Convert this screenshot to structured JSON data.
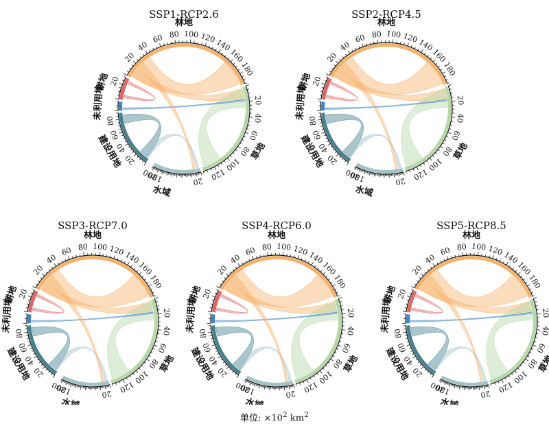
{
  "unit_note": {
    "prefix": "单位: ×10",
    "exp": "2",
    "suffix": " km",
    "exp2": "2"
  },
  "chart_data": [
    {
      "type": "chord",
      "title": "SSP1-RCP2.6",
      "sectors": [
        {
          "name": "林地",
          "value": 195,
          "ticks": [
            20,
            40,
            60,
            80,
            100,
            120,
            140,
            160,
            180
          ],
          "color": "#f6b26b"
        },
        {
          "name": "草地",
          "value": 135,
          "ticks": [
            20,
            40,
            60,
            80,
            100,
            120
          ],
          "color": "#b6d7a8"
        },
        {
          "name": "水域",
          "value": 205,
          "ticks": [
            20,
            180,
            200
          ],
          "color": "#a2c4c9"
        },
        {
          "name": "建设用地",
          "value": 90,
          "ticks": [
            20,
            40,
            60,
            80
          ],
          "color": "#45818e"
        },
        {
          "name": "未利用地",
          "value": 8,
          "ticks": [],
          "color": "#3d85c6"
        },
        {
          "name": "耕地",
          "value": 30,
          "ticks": [
            20
          ],
          "color": "#e06666"
        }
      ],
      "flows": [
        {
          "from": "林地",
          "to": "林地",
          "value": 150
        },
        {
          "from": "林地",
          "to": "草地",
          "value": 25
        },
        {
          "from": "草地",
          "to": "草地",
          "value": 100
        },
        {
          "from": "建设用地",
          "to": "建设用地",
          "value": 60
        },
        {
          "from": "耕地",
          "to": "耕地",
          "value": 15
        },
        {
          "from": "水域",
          "to": "建设用地",
          "value": 20
        },
        {
          "from": "未利用地",
          "to": "草地",
          "value": 3
        },
        {
          "from": "林地",
          "to": "水域",
          "value": 20
        }
      ]
    },
    {
      "type": "chord",
      "title": "SSP2-RCP4.5",
      "sectors": [
        {
          "name": "林地",
          "value": 195,
          "ticks": [
            20,
            40,
            60,
            80,
            100,
            120,
            140,
            160,
            180
          ],
          "color": "#f6b26b"
        },
        {
          "name": "草地",
          "value": 135,
          "ticks": [
            20,
            40,
            60,
            80,
            100,
            120
          ],
          "color": "#b6d7a8"
        },
        {
          "name": "水域",
          "value": 205,
          "ticks": [
            20,
            180,
            200
          ],
          "color": "#a2c4c9"
        },
        {
          "name": "建设用地",
          "value": 90,
          "ticks": [
            20,
            40,
            60,
            80
          ],
          "color": "#45818e"
        },
        {
          "name": "未利用地",
          "value": 8,
          "ticks": [],
          "color": "#3d85c6"
        },
        {
          "name": "耕地",
          "value": 30,
          "ticks": [
            20
          ],
          "color": "#e06666"
        }
      ],
      "flows": [
        {
          "from": "林地",
          "to": "林地",
          "value": 150
        },
        {
          "from": "林地",
          "to": "草地",
          "value": 25
        },
        {
          "from": "草地",
          "to": "草地",
          "value": 100
        },
        {
          "from": "建设用地",
          "to": "建设用地",
          "value": 60
        },
        {
          "from": "耕地",
          "to": "耕地",
          "value": 15
        },
        {
          "from": "水域",
          "to": "建设用地",
          "value": 20
        },
        {
          "from": "未利用地",
          "to": "草地",
          "value": 3
        },
        {
          "from": "林地",
          "to": "水域",
          "value": 20
        }
      ]
    },
    {
      "type": "chord",
      "title": "SSP3-RCP7.0",
      "sectors": [
        {
          "name": "林地",
          "value": 195,
          "ticks": [
            20,
            40,
            60,
            80,
            100,
            120,
            140,
            160,
            180
          ],
          "color": "#f6b26b"
        },
        {
          "name": "草地",
          "value": 135,
          "ticks": [
            20,
            40,
            60,
            80,
            100,
            120
          ],
          "color": "#b6d7a8"
        },
        {
          "name": "水域",
          "value": 205,
          "ticks": [
            20,
            180,
            200
          ],
          "color": "#a2c4c9"
        },
        {
          "name": "建设用地",
          "value": 90,
          "ticks": [
            20,
            40,
            60,
            80
          ],
          "color": "#45818e"
        },
        {
          "name": "未利用地",
          "value": 8,
          "ticks": [],
          "color": "#3d85c6"
        },
        {
          "name": "耕地",
          "value": 30,
          "ticks": [
            20
          ],
          "color": "#e06666"
        }
      ],
      "flows": [
        {
          "from": "林地",
          "to": "林地",
          "value": 150
        },
        {
          "from": "林地",
          "to": "草地",
          "value": 25
        },
        {
          "from": "草地",
          "to": "草地",
          "value": 100
        },
        {
          "from": "建设用地",
          "to": "建设用地",
          "value": 60
        },
        {
          "from": "耕地",
          "to": "耕地",
          "value": 15
        },
        {
          "from": "水域",
          "to": "建设用地",
          "value": 20
        },
        {
          "from": "未利用地",
          "to": "草地",
          "value": 3
        },
        {
          "from": "林地",
          "to": "水域",
          "value": 20
        }
      ]
    },
    {
      "type": "chord",
      "title": "SSP4-RCP6.0",
      "sectors": [
        {
          "name": "林地",
          "value": 195,
          "ticks": [
            20,
            40,
            60,
            80,
            100,
            120,
            140,
            160,
            180
          ],
          "color": "#f6b26b"
        },
        {
          "name": "草地",
          "value": 135,
          "ticks": [
            20,
            40,
            60,
            80,
            100,
            120
          ],
          "color": "#b6d7a8"
        },
        {
          "name": "水域",
          "value": 205,
          "ticks": [
            20,
            180,
            200
          ],
          "color": "#a2c4c9"
        },
        {
          "name": "建设用地",
          "value": 90,
          "ticks": [
            20,
            40,
            60,
            80
          ],
          "color": "#45818e"
        },
        {
          "name": "未利用地",
          "value": 8,
          "ticks": [],
          "color": "#3d85c6"
        },
        {
          "name": "耕地",
          "value": 30,
          "ticks": [
            20
          ],
          "color": "#e06666"
        }
      ],
      "flows": [
        {
          "from": "林地",
          "to": "林地",
          "value": 150
        },
        {
          "from": "林地",
          "to": "草地",
          "value": 25
        },
        {
          "from": "草地",
          "to": "草地",
          "value": 100
        },
        {
          "from": "建设用地",
          "to": "建设用地",
          "value": 60
        },
        {
          "from": "耕地",
          "to": "耕地",
          "value": 15
        },
        {
          "from": "水域",
          "to": "建设用地",
          "value": 20
        },
        {
          "from": "未利用地",
          "to": "草地",
          "value": 3
        },
        {
          "from": "林地",
          "to": "水域",
          "value": 20
        }
      ]
    },
    {
      "type": "chord",
      "title": "SSP5-RCP8.5",
      "sectors": [
        {
          "name": "林地",
          "value": 195,
          "ticks": [
            20,
            40,
            60,
            80,
            100,
            120,
            140,
            160,
            180
          ],
          "color": "#f6b26b"
        },
        {
          "name": "草地",
          "value": 135,
          "ticks": [
            20,
            40,
            60,
            80,
            100,
            120
          ],
          "color": "#b6d7a8"
        },
        {
          "name": "水域",
          "value": 205,
          "ticks": [
            20,
            180,
            200
          ],
          "color": "#a2c4c9"
        },
        {
          "name": "建设用地",
          "value": 90,
          "ticks": [
            20,
            40,
            60,
            80
          ],
          "color": "#45818e"
        },
        {
          "name": "未利用地",
          "value": 8,
          "ticks": [],
          "color": "#3d85c6"
        },
        {
          "name": "耕地",
          "value": 30,
          "ticks": [
            20
          ],
          "color": "#e06666"
        }
      ],
      "flows": [
        {
          "from": "林地",
          "to": "林地",
          "value": 150
        },
        {
          "from": "林地",
          "to": "草地",
          "value": 25
        },
        {
          "from": "草地",
          "to": "草地",
          "value": 100
        },
        {
          "from": "建设用地",
          "to": "建设用地",
          "value": 60
        },
        {
          "from": "耕地",
          "to": "耕地",
          "value": 15
        },
        {
          "from": "水域",
          "to": "建设用地",
          "value": 20
        },
        {
          "from": "未利用地",
          "to": "草地",
          "value": 3
        },
        {
          "from": "林地",
          "to": "水域",
          "value": 20
        }
      ]
    }
  ]
}
